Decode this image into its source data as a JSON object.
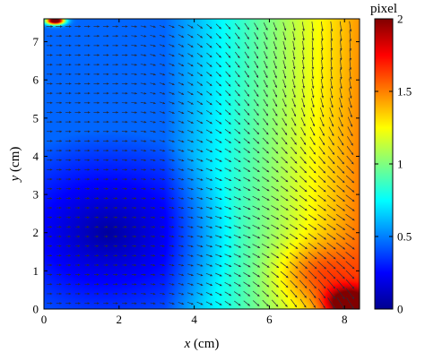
{
  "chart_data": {
    "type": "heatmap",
    "subtype": "quiver-over-heatmap",
    "title": "",
    "xlabel": {
      "var": "x",
      "unit": " (cm)"
    },
    "ylabel": {
      "var": "y",
      "unit": " (cm)"
    },
    "xlim": [
      0,
      8.4
    ],
    "ylim": [
      0,
      7.6
    ],
    "xticks": [
      0,
      2,
      4,
      6,
      8
    ],
    "yticks": [
      0,
      1,
      2,
      3,
      4,
      5,
      6,
      7
    ],
    "colorbar": {
      "title": "pixel",
      "range": [
        0,
        2
      ],
      "ticks": [
        0,
        0.5,
        1,
        1.5,
        2
      ],
      "tick_labels": [
        "0",
        "0.5",
        "1",
        "1.5",
        "2"
      ],
      "colormap": "jet"
    },
    "field_description": "displacement magnitude, min ~0.1 near (1.7, 2.0), rising to ~1.4 at right edge, ~2 in corners (0,7.5) and (8,0.2)",
    "magnitude_samples": [
      {
        "x": 0.3,
        "y": 7.5,
        "value": 2.0
      },
      {
        "x": 1.7,
        "y": 2.0,
        "value": 0.1
      },
      {
        "x": 1.0,
        "y": 5.0,
        "value": 0.25
      },
      {
        "x": 4.0,
        "y": 4.0,
        "value": 0.6
      },
      {
        "x": 6.0,
        "y": 3.0,
        "value": 0.95
      },
      {
        "x": 8.2,
        "y": 4.0,
        "value": 1.3
      },
      {
        "x": 8.0,
        "y": 0.2,
        "value": 1.9
      }
    ]
  },
  "colors": {
    "frame": "#000000",
    "background": "#ffffff",
    "arrow": "#2b2b3a"
  }
}
